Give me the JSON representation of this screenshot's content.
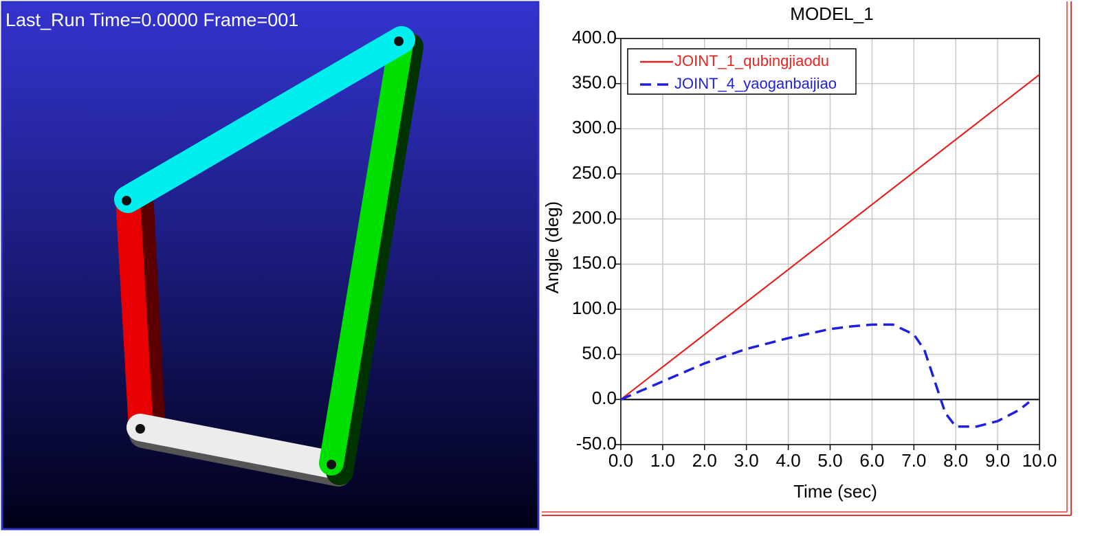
{
  "viewport": {
    "title": "Last_Run  Time=0.0000  Frame=001"
  },
  "chart_data": {
    "type": "line",
    "title": "MODEL_1",
    "x_label": "Time (sec)",
    "y_label": "Angle (deg)",
    "x": [
      0,
      0.5,
      1,
      1.5,
      2,
      2.5,
      3,
      3.5,
      4,
      4.5,
      5,
      5.5,
      6,
      6.5,
      7,
      7.25,
      7.5,
      7.75,
      8,
      8.5,
      9,
      9.5,
      9.75,
      10
    ],
    "series": [
      {
        "name": "JOINT_1_qubingjiaodu",
        "color": "#e8231f",
        "dash": false,
        "values": [
          0,
          18,
          36,
          54,
          72,
          90,
          108,
          126,
          144,
          162,
          180,
          198,
          216,
          234,
          252,
          261,
          270,
          279,
          288,
          306,
          324,
          342,
          351,
          360
        ]
      },
      {
        "name": "JOINT_4_yaoganbaijiao",
        "color": "#1f1fe0",
        "dash": true,
        "values": [
          0,
          10,
          20,
          30,
          40,
          48,
          56,
          62,
          68,
          73,
          78,
          81,
          83,
          83,
          72,
          55,
          20,
          -15,
          -30,
          -30,
          -24,
          -12,
          -3,
          null
        ]
      }
    ],
    "xlim": [
      0,
      10
    ],
    "xticks": [
      {
        "value": 0,
        "label": "0.0"
      },
      {
        "value": 1,
        "label": "1.0"
      },
      {
        "value": 2,
        "label": "2.0"
      },
      {
        "value": 3,
        "label": "3.0"
      },
      {
        "value": 4,
        "label": "4.0"
      },
      {
        "value": 5,
        "label": "5.0"
      },
      {
        "value": 6,
        "label": "6.0"
      },
      {
        "value": 7,
        "label": "7.0"
      },
      {
        "value": 8,
        "label": "8.0"
      },
      {
        "value": 9,
        "label": "9.0"
      },
      {
        "value": 10,
        "label": "10.0"
      }
    ],
    "ylim": [
      -50,
      400
    ],
    "yticks": [
      {
        "value": -50,
        "label": "-50.0"
      },
      {
        "value": 0,
        "label": "0.0"
      },
      {
        "value": 50,
        "label": "50.0"
      },
      {
        "value": 100,
        "label": "100.0"
      },
      {
        "value": 150,
        "label": "150.0"
      },
      {
        "value": 200,
        "label": "200.0"
      },
      {
        "value": 250,
        "label": "250.0"
      },
      {
        "value": 300,
        "label": "300.0"
      },
      {
        "value": 350,
        "label": "350.0"
      },
      {
        "value": 400,
        "label": "400.0"
      }
    ],
    "grid": true,
    "legend": "upper left"
  }
}
